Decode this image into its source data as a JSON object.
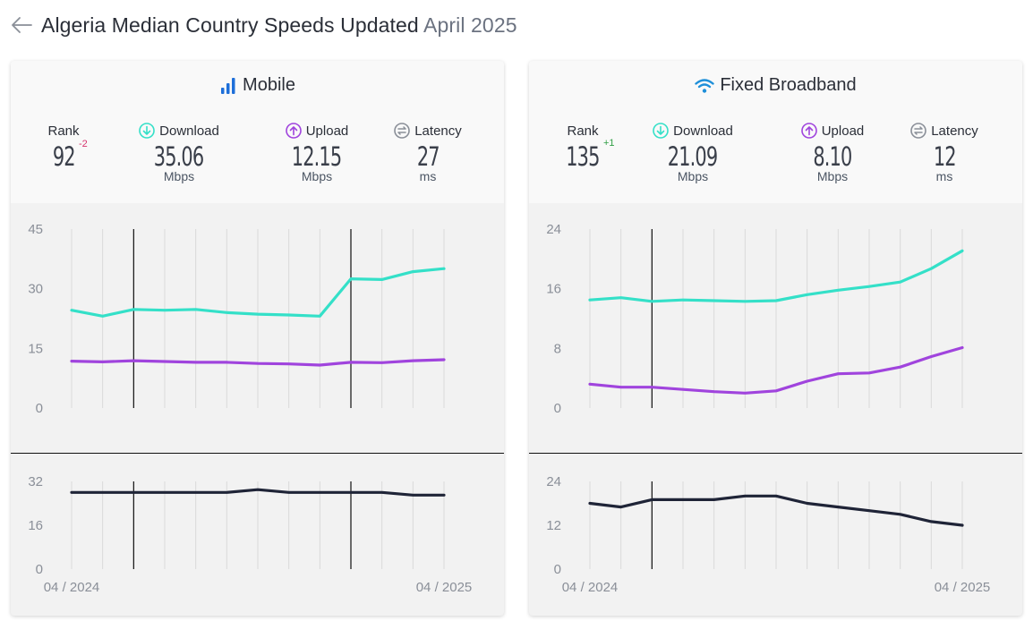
{
  "header": {
    "title_main": "Algeria Median Country Speeds Updated",
    "title_date": "April 2025"
  },
  "mobile": {
    "title": "Mobile",
    "rank_label": "Rank",
    "rank": "92",
    "rank_change": "-2",
    "download_label": "Download",
    "download": "35.06",
    "download_unit": "Mbps",
    "upload_label": "Upload",
    "upload": "12.15",
    "upload_unit": "Mbps",
    "latency_label": "Latency",
    "latency": "27",
    "latency_unit": "ms"
  },
  "fixed": {
    "title": "Fixed Broadband",
    "rank_label": "Rank",
    "rank": "135",
    "rank_change": "+1",
    "download_label": "Download",
    "download": "21.09",
    "download_unit": "Mbps",
    "upload_label": "Upload",
    "upload": "8.10",
    "upload_unit": "Mbps",
    "latency_label": "Latency",
    "latency": "12",
    "latency_unit": "ms"
  },
  "colors": {
    "download": "#34e0c8",
    "upload": "#a044dd",
    "latency": "#1f2437",
    "grid": "#d9d9d9",
    "rank_down": "#d6336c",
    "rank_up": "#2f9e44"
  },
  "chart_data": [
    {
      "type": "line",
      "panel": "mobile-speed",
      "x": [
        "04/2024",
        "05/2024",
        "06/2024",
        "07/2024",
        "08/2024",
        "09/2024",
        "10/2024",
        "11/2024",
        "12/2024",
        "01/2025",
        "02/2025",
        "03/2025",
        "04/2025"
      ],
      "x_tick_labels": [
        "04 / 2024",
        "04 / 2025"
      ],
      "y_ticks": [
        0,
        15,
        30,
        45
      ],
      "ylim": [
        0,
        45
      ],
      "markers": [
        "06/2024",
        "01/2025"
      ],
      "series": [
        {
          "name": "Download",
          "values": [
            24.6,
            23.1,
            24.8,
            24.6,
            24.8,
            24.0,
            23.6,
            23.4,
            23.1,
            32.5,
            32.3,
            34.3,
            35.06
          ]
        },
        {
          "name": "Upload",
          "values": [
            11.8,
            11.6,
            11.9,
            11.7,
            11.5,
            11.5,
            11.2,
            11.1,
            10.8,
            11.5,
            11.4,
            11.9,
            12.15
          ]
        }
      ]
    },
    {
      "type": "line",
      "panel": "mobile-latency",
      "x": [
        "04/2024",
        "05/2024",
        "06/2024",
        "07/2024",
        "08/2024",
        "09/2024",
        "10/2024",
        "11/2024",
        "12/2024",
        "01/2025",
        "02/2025",
        "03/2025",
        "04/2025"
      ],
      "x_tick_labels": [
        "04 / 2024",
        "04 / 2025"
      ],
      "y_ticks": [
        0,
        16,
        32
      ],
      "ylim": [
        0,
        32
      ],
      "markers": [
        "06/2024",
        "01/2025"
      ],
      "series": [
        {
          "name": "Latency",
          "values": [
            28,
            28,
            28,
            28,
            28,
            28,
            29,
            28,
            28,
            28,
            28,
            27,
            27
          ]
        }
      ]
    },
    {
      "type": "line",
      "panel": "fixed-speed",
      "x": [
        "04/2024",
        "05/2024",
        "06/2024",
        "07/2024",
        "08/2024",
        "09/2024",
        "10/2024",
        "11/2024",
        "12/2024",
        "01/2025",
        "02/2025",
        "03/2025",
        "04/2025"
      ],
      "x_tick_labels": [
        "04 / 2024",
        "04 / 2025"
      ],
      "y_ticks": [
        0,
        8,
        16,
        24
      ],
      "ylim": [
        0,
        24
      ],
      "markers": [
        "06/2024"
      ],
      "series": [
        {
          "name": "Download",
          "values": [
            14.5,
            14.8,
            14.3,
            14.5,
            14.4,
            14.3,
            14.4,
            15.2,
            15.8,
            16.3,
            16.9,
            18.7,
            21.09
          ]
        },
        {
          "name": "Upload",
          "values": [
            3.2,
            2.8,
            2.8,
            2.5,
            2.2,
            2.0,
            2.3,
            3.6,
            4.6,
            4.7,
            5.5,
            6.9,
            8.1
          ]
        }
      ]
    },
    {
      "type": "line",
      "panel": "fixed-latency",
      "x": [
        "04/2024",
        "05/2024",
        "06/2024",
        "07/2024",
        "08/2024",
        "09/2024",
        "10/2024",
        "11/2024",
        "12/2024",
        "01/2025",
        "02/2025",
        "03/2025",
        "04/2025"
      ],
      "x_tick_labels": [
        "04 / 2024",
        "04 / 2025"
      ],
      "y_ticks": [
        0,
        12,
        24
      ],
      "ylim": [
        0,
        24
      ],
      "markers": [
        "06/2024"
      ],
      "series": [
        {
          "name": "Latency",
          "values": [
            18,
            17,
            19,
            19,
            19,
            20,
            20,
            18,
            17,
            16,
            15,
            13,
            12
          ]
        }
      ]
    }
  ]
}
